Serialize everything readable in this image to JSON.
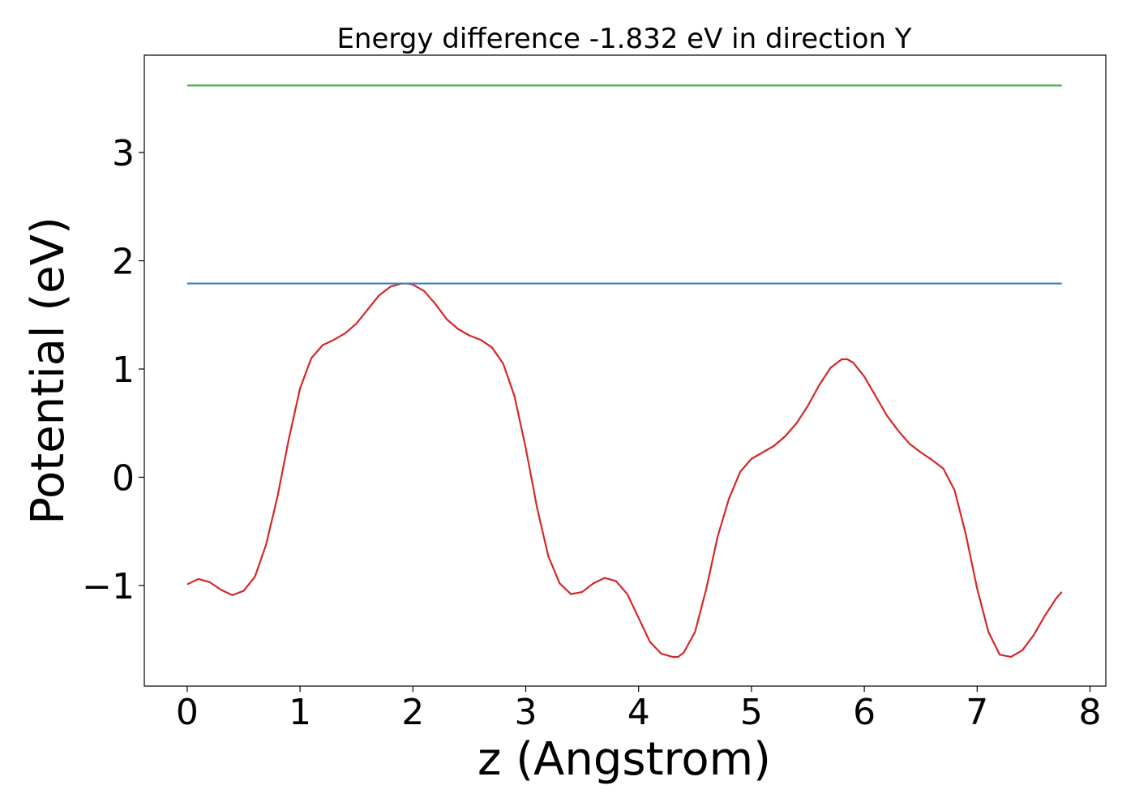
{
  "chart_data": {
    "type": "line",
    "title": "Energy difference -1.832 eV in direction Y",
    "xlabel": "z (Angstrom)",
    "ylabel": "Potential (eV)",
    "xlim": [
      -0.38,
      8.14
    ],
    "ylim": [
      -1.93,
      3.9
    ],
    "xticks": [
      {
        "value": 0,
        "label": "0"
      },
      {
        "value": 1,
        "label": "1"
      },
      {
        "value": 2,
        "label": "2"
      },
      {
        "value": 3,
        "label": "3"
      },
      {
        "value": 4,
        "label": "4"
      },
      {
        "value": 5,
        "label": "5"
      },
      {
        "value": 6,
        "label": "6"
      },
      {
        "value": 7,
        "label": "7"
      },
      {
        "value": 8,
        "label": "8"
      }
    ],
    "yticks": [
      {
        "value": -1,
        "label": "−1"
      },
      {
        "value": 0,
        "label": "0"
      },
      {
        "value": 1,
        "label": "1"
      },
      {
        "value": 2,
        "label": "2"
      },
      {
        "value": 3,
        "label": "3"
      }
    ],
    "grid": false,
    "series": [
      {
        "color": "#d62728",
        "x": [
          0,
          0.1,
          0.2,
          0.3,
          0.4,
          0.5,
          0.6,
          0.7,
          0.8,
          0.9,
          1.0,
          1.1,
          1.2,
          1.3,
          1.4,
          1.5,
          1.6,
          1.7,
          1.8,
          1.9,
          1.95,
          2.0,
          2.1,
          2.2,
          2.3,
          2.4,
          2.5,
          2.6,
          2.7,
          2.8,
          2.9,
          3.0,
          3.1,
          3.2,
          3.3,
          3.4,
          3.5,
          3.6,
          3.7,
          3.8,
          3.9,
          4.0,
          4.1,
          4.2,
          4.3,
          4.35,
          4.4,
          4.5,
          4.6,
          4.7,
          4.8,
          4.9,
          5.0,
          5.1,
          5.2,
          5.3,
          5.4,
          5.5,
          5.6,
          5.7,
          5.8,
          5.85,
          5.9,
          6.0,
          6.1,
          6.2,
          6.3,
          6.4,
          6.5,
          6.6,
          6.7,
          6.8,
          6.9,
          7.0,
          7.1,
          7.2,
          7.3,
          7.4,
          7.5,
          7.6,
          7.7,
          7.75
        ],
        "y": [
          -0.99,
          -0.94,
          -0.97,
          -1.04,
          -1.09,
          -1.05,
          -0.92,
          -0.62,
          -0.18,
          0.35,
          0.82,
          1.1,
          1.22,
          1.27,
          1.33,
          1.42,
          1.55,
          1.68,
          1.76,
          1.79,
          1.79,
          1.78,
          1.72,
          1.6,
          1.46,
          1.37,
          1.31,
          1.27,
          1.2,
          1.05,
          0.75,
          0.27,
          -0.28,
          -0.73,
          -0.98,
          -1.08,
          -1.06,
          -0.98,
          -0.93,
          -0.96,
          -1.08,
          -1.3,
          -1.52,
          -1.63,
          -1.66,
          -1.66,
          -1.62,
          -1.43,
          -1.03,
          -0.55,
          -0.2,
          0.05,
          0.17,
          0.23,
          0.29,
          0.38,
          0.5,
          0.66,
          0.85,
          1.01,
          1.09,
          1.09,
          1.06,
          0.93,
          0.75,
          0.57,
          0.43,
          0.31,
          0.23,
          0.16,
          0.08,
          -0.12,
          -0.53,
          -1.03,
          -1.43,
          -1.64,
          -1.66,
          -1.6,
          -1.46,
          -1.28,
          -1.12,
          -1.06
        ]
      },
      {
        "color": "#3a7fc1",
        "x": [
          0,
          7.75
        ],
        "y": [
          1.79,
          1.79
        ]
      },
      {
        "color": "#4caf50",
        "x": [
          0,
          7.75
        ],
        "y": [
          3.62,
          3.62
        ]
      }
    ]
  }
}
